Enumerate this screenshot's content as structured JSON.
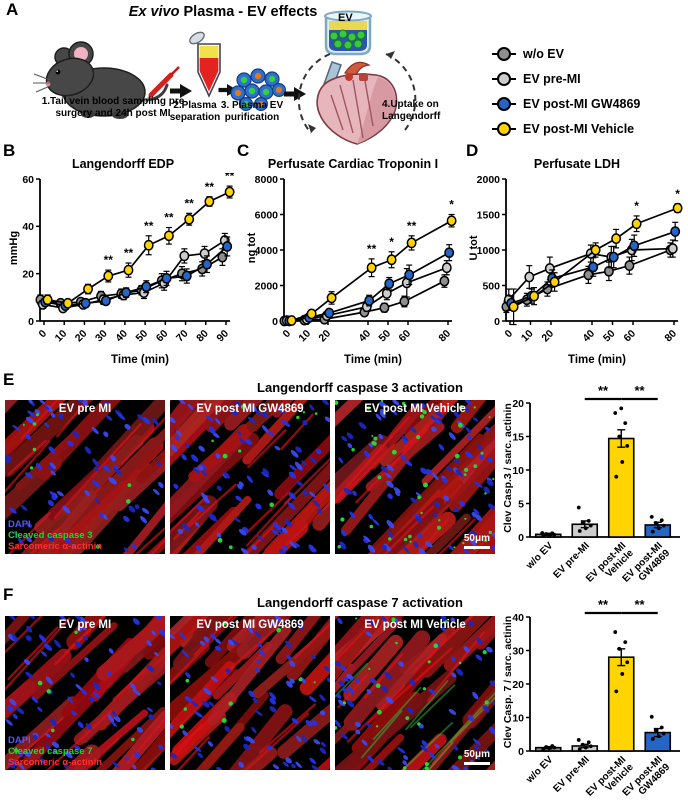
{
  "letters": {
    "A": "A",
    "B": "B",
    "C": "C",
    "D": "D",
    "E": "E",
    "F": "F"
  },
  "panelA": {
    "title_italic": "Ex vivo",
    "title_rest": " Plasma - EV effects",
    "beaker_label": "EV",
    "steps": [
      "1.Tail vein blood sampling  pre surgery and 24h post MI",
      "2.Plasma separation",
      "3. Plasma EV purification",
      "4.Uptake on Langendorff"
    ]
  },
  "legend": {
    "items": [
      {
        "label": "w/o EV",
        "color": "#8f8f8f"
      },
      {
        "label": "EV pre-MI",
        "color": "#cdcdcd"
      },
      {
        "label": "EV  post-MI GW4869",
        "color": "#2565c4"
      },
      {
        "label": "EV  post-MI Vehicle",
        "color": "#ffd400"
      }
    ]
  },
  "chart_data": [
    {
      "id": "edp",
      "type": "line",
      "title": "Langendorff EDP",
      "xlabel": "Time (min)",
      "ylabel": "mmHg",
      "x": [
        0,
        10,
        20,
        30,
        40,
        50,
        60,
        70,
        80,
        90
      ],
      "ylim": [
        0,
        60
      ],
      "yticks": [
        0,
        20,
        40,
        60
      ],
      "series": [
        {
          "name": "w/o EV",
          "color": "#8f8f8f",
          "values": [
            9,
            7.5,
            8,
            10.5,
            11.5,
            13,
            17,
            20,
            22,
            27
          ],
          "err": [
            2,
            1.5,
            1.5,
            2,
            2,
            2,
            3,
            3,
            3,
            3.5
          ]
        },
        {
          "name": "EV pre-MI",
          "color": "#cdcdcd",
          "values": [
            7,
            5.5,
            7,
            9,
            11,
            12,
            16,
            27.5,
            28.5,
            34
          ],
          "err": [
            1.5,
            1,
            1.5,
            2,
            2,
            2.5,
            3,
            3,
            3,
            3
          ]
        },
        {
          "name": "EV post-MI GW4869",
          "color": "#2565c4",
          "values": [
            8,
            6.5,
            7.5,
            8.5,
            12,
            14.5,
            18,
            19,
            24,
            31.5
          ],
          "err": [
            1.5,
            1.5,
            1.5,
            1.5,
            2,
            2.5,
            3,
            3,
            3.5,
            4
          ]
        },
        {
          "name": "EV post-MI Vehicle",
          "color": "#ffd400",
          "values": [
            9,
            7.5,
            13.5,
            19,
            21.5,
            32,
            36,
            43,
            50.5,
            54.5
          ],
          "err": [
            2,
            1.5,
            2,
            2.5,
            3,
            4,
            3.5,
            2.5,
            2,
            2.5
          ]
        }
      ],
      "sig": [
        {
          "x": 30,
          "label": "**"
        },
        {
          "x": 40,
          "label": "**"
        },
        {
          "x": 50,
          "label": "**"
        },
        {
          "x": 60,
          "label": "**"
        },
        {
          "x": 70,
          "label": "**"
        },
        {
          "x": 80,
          "label": "**"
        },
        {
          "x": 90,
          "label": "**"
        }
      ]
    },
    {
      "id": "troponin",
      "type": "line",
      "title": "Perfusate Cardiac Troponin I",
      "xlabel": "Time (min)",
      "ylabel": "ng tot",
      "x": [
        0,
        10,
        20,
        40,
        50,
        60,
        80
      ],
      "ylim": [
        0,
        8000
      ],
      "yticks": [
        0,
        2000,
        4000,
        6000,
        8000
      ],
      "series": [
        {
          "name": "w/o EV",
          "color": "#8f8f8f",
          "values": [
            0,
            50,
            100,
            500,
            750,
            1100,
            2250
          ],
          "err": [
            30,
            60,
            80,
            200,
            250,
            300,
            350
          ]
        },
        {
          "name": "EV pre-MI",
          "color": "#cdcdcd",
          "values": [
            20,
            100,
            300,
            800,
            1550,
            2150,
            3000
          ],
          "err": [
            30,
            80,
            120,
            250,
            350,
            800,
            400
          ]
        },
        {
          "name": "EV post-MI GW4869",
          "color": "#2565c4",
          "values": [
            0,
            200,
            450,
            1150,
            2100,
            2600,
            3850
          ],
          "err": [
            30,
            100,
            150,
            300,
            350,
            550,
            450
          ]
        },
        {
          "name": "EV post-MI Vehicle",
          "color": "#ffd400",
          "values": [
            30,
            400,
            1300,
            3000,
            3450,
            4400,
            5650
          ],
          "err": [
            50,
            200,
            350,
            500,
            450,
            400,
            350
          ]
        }
      ],
      "sig": [
        {
          "x": 40,
          "label": "**"
        },
        {
          "x": 50,
          "label": "*"
        },
        {
          "x": 60,
          "label": "**"
        },
        {
          "x": 80,
          "label": "*"
        }
      ]
    },
    {
      "id": "ldh",
      "type": "line",
      "title": "Perfusate LDH",
      "xlabel": "Time (min)",
      "ylabel": "U tot",
      "x": [
        0,
        10,
        20,
        40,
        50,
        60,
        80
      ],
      "ylim": [
        0,
        2000
      ],
      "yticks": [
        0,
        500,
        1000,
        1500,
        2000
      ],
      "series": [
        {
          "name": "w/o EV",
          "color": "#8f8f8f",
          "values": [
            200,
            300,
            450,
            650,
            700,
            780,
            1000
          ],
          "err": [
            80,
            90,
            100,
            120,
            130,
            120,
            100
          ]
        },
        {
          "name": "EV pre-MI",
          "color": "#cdcdcd",
          "values": [
            300,
            620,
            740,
            950,
            900,
            1000,
            1020
          ],
          "err": [
            150,
            160,
            160,
            120,
            150,
            150,
            120
          ]
        },
        {
          "name": "EV post-MI GW4869",
          "color": "#2565c4",
          "values": [
            250,
            350,
            600,
            760,
            900,
            1060,
            1260
          ],
          "err": [
            100,
            100,
            120,
            130,
            150,
            150,
            130
          ]
        },
        {
          "name": "EV post-MI Vehicle",
          "color": "#ffd400",
          "values": [
            200,
            350,
            550,
            1000,
            1160,
            1370,
            1590
          ],
          "err": [
            250,
            120,
            130,
            100,
            130,
            110,
            60
          ]
        }
      ],
      "sig": [
        {
          "x": 60,
          "label": "*"
        },
        {
          "x": 80,
          "label": "*"
        }
      ]
    },
    {
      "id": "casp3_bar",
      "type": "bar",
      "ylabel": "Clev Casp.3 / sarc. actinin",
      "categories": [
        "w/o EV",
        "EV pre-MI",
        "EV post-MI\nVehicle",
        "EV post-MI\nGW4869"
      ],
      "values": [
        0.4,
        1.9,
        14.7,
        1.8
      ],
      "err": [
        0.15,
        0.5,
        1.3,
        0.4
      ],
      "colors": [
        "#8f8f8f",
        "#cdcdcd",
        "#ffd400",
        "#2565c4"
      ],
      "points": [
        [
          0.2,
          0.3,
          0.35,
          0.45,
          0.55,
          0.6
        ],
        [
          0.9,
          1.3,
          1.7,
          2.1,
          2.4,
          4.4
        ],
        [
          9,
          11.2,
          13.6,
          15,
          17,
          18.5,
          19.2
        ],
        [
          0.8,
          1.3,
          1.7,
          2.1,
          2.5,
          3
        ]
      ],
      "ylim": [
        0,
        20
      ],
      "yticks": [
        0,
        5,
        10,
        15,
        20
      ],
      "sig": [
        {
          "from": 1,
          "to": 2,
          "label": "**"
        },
        {
          "from": 2,
          "to": 3,
          "label": "**"
        }
      ]
    },
    {
      "id": "casp7_bar",
      "type": "bar",
      "ylabel": "Clev Casp. 7 / sarc. actinin",
      "categories": [
        "w/o EV",
        "EV pre-MI",
        "EV post-MI\nVehicle",
        "EV post-MI\nGW4869"
      ],
      "values": [
        1,
        1.5,
        28,
        5.5
      ],
      "err": [
        0.3,
        0.5,
        2.5,
        1.2
      ],
      "colors": [
        "#8f8f8f",
        "#cdcdcd",
        "#ffd400",
        "#2565c4"
      ],
      "points": [
        [
          0.5,
          0.8,
          1,
          1.2,
          1.5
        ],
        [
          0.6,
          1,
          1.4,
          1.9,
          2.6,
          3.3
        ],
        [
          17.8,
          23,
          26.5,
          30.5,
          32.5,
          35.5
        ],
        [
          3.6,
          4.4,
          5.2,
          6.2,
          7,
          10.2
        ]
      ],
      "ylim": [
        0,
        40
      ],
      "yticks": [
        0,
        10,
        20,
        30,
        40
      ],
      "sig": [
        {
          "from": 1,
          "to": 2,
          "label": "**"
        },
        {
          "from": 2,
          "to": 3,
          "label": "**"
        }
      ]
    }
  ],
  "panelE": {
    "title": "Langendorff caspase 3 activation",
    "images": [
      {
        "label": "EV pre MI",
        "green": 8,
        "blue": 75,
        "seed": 11
      },
      {
        "label": "EV post MI GW4869",
        "green": 10,
        "blue": 95,
        "seed": 22
      },
      {
        "label": "EV post MI Vehicle",
        "green": 44,
        "blue": 100,
        "seed": 33,
        "scalebar": "50μm"
      }
    ],
    "stains": [
      {
        "text": "DAPI",
        "color": "#5058ff"
      },
      {
        "text": "Cleaved caspase 3",
        "color": "#21d433"
      },
      {
        "text": "Sarcomeric α-actinin",
        "color": "#ff2e2e"
      }
    ]
  },
  "panelF": {
    "title": "Langendorff caspase 7 activation",
    "images": [
      {
        "label": "EV pre MI",
        "green": 6,
        "blue": 80,
        "seed": 44
      },
      {
        "label": "EV post MI GW4869",
        "green": 9,
        "blue": 75,
        "seed": 55
      },
      {
        "label": "EV post MI Vehicle",
        "green": 22,
        "blue": 70,
        "seed": 66,
        "glow": true,
        "scalebar": "50μm"
      }
    ],
    "stains": [
      {
        "text": "DAPI",
        "color": "#5058ff"
      },
      {
        "text": "Cleaved caspase 7",
        "color": "#21d433"
      },
      {
        "text": "Sarcomeric α-actinin",
        "color": "#ff2e2e"
      }
    ]
  }
}
